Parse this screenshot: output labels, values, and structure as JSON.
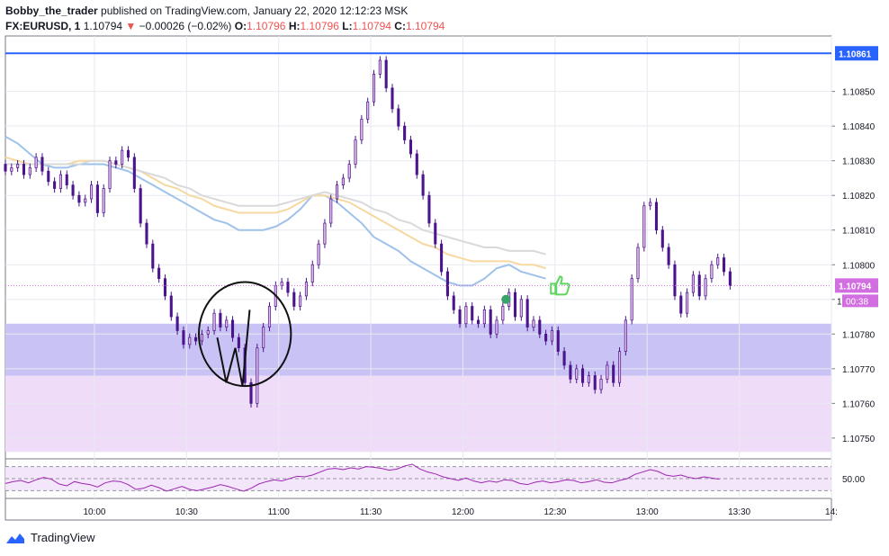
{
  "header": {
    "author": "Bobby_the_trader",
    "published_text": " published on TradingView.com, January 22, 2020 12:12:23 MSK",
    "symbol": "FX:EURUSD, 1",
    "last": "1.10794",
    "change_arrow": "▼",
    "change": "−0.00026 (−0.02%)",
    "o_label": "O:",
    "o_value": "1.10796",
    "h_label": "H:",
    "h_value": "1.10796",
    "l_label": "L:",
    "l_value": "1.10794",
    "c_label": "C:",
    "c_value": "1.10794"
  },
  "footer": {
    "brand": "TradingView"
  },
  "colors": {
    "accent_blue": "#2962ff",
    "up_candle": "#e1bee7",
    "down_candle": "#4a148c",
    "ma_blue": "#9fc2ea",
    "ma_yellow": "#f6d8a0",
    "ma_gray": "#d9d9d9",
    "zone_blue": "#c9c3f5",
    "zone_pink": "#efdcf8",
    "rsi_line": "#9c27b0",
    "price_label": "#d16ee0"
  },
  "chart_data": {
    "type": "candlestick",
    "ylim": [
      1.10744,
      1.10866
    ],
    "y_ticks": [
      "1.10850",
      "1.10840",
      "1.10830",
      "1.10820",
      "1.10810",
      "1.10800",
      "1.10790",
      "1.10780",
      "1.10770",
      "1.10760",
      "1.10750"
    ],
    "x_ticks": [
      "10:00",
      "10:30",
      "11:00",
      "11:30",
      "12:00",
      "12:30",
      "13:00",
      "13:30",
      "14:"
    ],
    "x_tick_minutes": [
      0,
      30,
      60,
      90,
      120,
      150,
      180,
      210,
      240
    ],
    "x_range_minutes": [
      -29,
      240
    ],
    "horizontal_line": {
      "price": 1.10861,
      "label": "1.10861"
    },
    "current_price": {
      "price": 1.10794,
      "label": "1.10794",
      "countdown": "00:38"
    },
    "partial_tick_label": "1",
    "zones": [
      {
        "from": 1.10768,
        "to": 1.10783,
        "color": "#c9c3f5"
      },
      {
        "from": 1.10746,
        "to": 1.10768,
        "color": "#efdcf8"
      }
    ],
    "candle_start_minute": -29,
    "closes": [
      1.10827,
      1.10828,
      1.10829,
      1.10826,
      1.10828,
      1.10831,
      1.10827,
      1.10824,
      1.10822,
      1.10826,
      1.10823,
      1.1082,
      1.10818,
      1.10819,
      1.10823,
      1.10815,
      1.10822,
      1.1083,
      1.10829,
      1.10833,
      1.10831,
      1.10822,
      1.10812,
      1.10806,
      1.10799,
      1.10796,
      1.10791,
      1.10785,
      1.10781,
      1.10777,
      1.10779,
      1.10778,
      1.1078,
      1.10781,
      1.10786,
      1.10782,
      1.10784,
      1.10779,
      1.10776,
      1.10766,
      1.1076,
      1.10776,
      1.10782,
      1.10788,
      1.10794,
      1.10795,
      1.10792,
      1.10788,
      1.10791,
      1.10795,
      1.108,
      1.10806,
      1.10812,
      1.10819,
      1.10823,
      1.10825,
      1.10829,
      1.10836,
      1.10842,
      1.10847,
      1.10855,
      1.10859,
      1.10851,
      1.10845,
      1.1084,
      1.10836,
      1.10832,
      1.10826,
      1.1082,
      1.10812,
      1.10806,
      1.10798,
      1.10791,
      1.10787,
      1.10783,
      1.10788,
      1.10784,
      1.10783,
      1.10787,
      1.1078,
      1.10784,
      1.10788,
      1.10792,
      1.10785,
      1.1079,
      1.10782,
      1.10784,
      1.1078,
      1.10778,
      1.10781,
      1.10775,
      1.10771,
      1.10767,
      1.1077,
      1.10766,
      1.10768,
      1.10764,
      1.10767,
      1.10771,
      1.10766,
      1.10775,
      1.10784,
      1.10796,
      1.10805,
      1.10817,
      1.10818,
      1.1081,
      1.10805,
      1.108,
      1.10791,
      1.10786,
      1.10792,
      1.10797,
      1.10791,
      1.10796,
      1.108,
      1.10802,
      1.10798,
      1.10794
    ],
    "overlays": [
      {
        "name": "",
        "color": "#9fc2ea",
        "from": -29,
        "points": [
          1.10837,
          1.10835,
          1.10832,
          1.10829,
          1.10828,
          1.10828,
          1.10829,
          1.10829,
          1.10829,
          1.10828,
          1.10827,
          1.10825,
          1.10823,
          1.10821,
          1.10819,
          1.10817,
          1.10815,
          1.10813,
          1.10812,
          1.1081,
          1.1081,
          1.1081,
          1.10811,
          1.10813,
          1.10816,
          1.1082,
          1.1082,
          1.10818,
          1.10815,
          1.10812,
          1.10808,
          1.10806,
          1.10804,
          1.10801,
          1.10799,
          1.10797,
          1.10795,
          1.10794,
          1.10794,
          1.10796,
          1.10799,
          1.108,
          1.10798,
          1.10797,
          1.10796
        ]
      },
      {
        "name": "",
        "color": "#f6d8a0",
        "from": -29,
        "points": [
          1.10831,
          1.1083,
          1.10829,
          1.10829,
          1.10829,
          1.10829,
          1.1083,
          1.1083,
          1.1083,
          1.10829,
          1.10828,
          1.10827,
          1.10825,
          1.10823,
          1.10822,
          1.1082,
          1.10819,
          1.10817,
          1.10816,
          1.10815,
          1.10815,
          1.10815,
          1.10815,
          1.10816,
          1.10818,
          1.1082,
          1.1082,
          1.10819,
          1.10818,
          1.10816,
          1.10814,
          1.10812,
          1.1081,
          1.10808,
          1.10806,
          1.10805,
          1.10803,
          1.10802,
          1.10801,
          1.10801,
          1.10801,
          1.10801,
          1.108,
          1.108,
          1.10799
        ]
      },
      {
        "name": "",
        "color": "#d9d9d9",
        "from": -29,
        "points": [
          1.10829,
          1.10829,
          1.10829,
          1.10829,
          1.10829,
          1.10829,
          1.10829,
          1.1083,
          1.1083,
          1.10829,
          1.10828,
          1.10827,
          1.10826,
          1.10825,
          1.10823,
          1.10822,
          1.1082,
          1.10819,
          1.10818,
          1.10817,
          1.10817,
          1.10817,
          1.10817,
          1.10818,
          1.10819,
          1.1082,
          1.10821,
          1.1082,
          1.10819,
          1.10818,
          1.10816,
          1.10815,
          1.10813,
          1.10812,
          1.1081,
          1.10809,
          1.10808,
          1.10807,
          1.10806,
          1.10805,
          1.10805,
          1.10804,
          1.10804,
          1.10804,
          1.10803
        ]
      }
    ],
    "rsi": {
      "ylim": [
        35,
        65
      ],
      "levels": [
        60,
        50,
        40
      ],
      "level_label": "50.00",
      "values": [
        46.0,
        47.5,
        48.5,
        46.5,
        49.0,
        51.0,
        49.5,
        45.5,
        44.0,
        47.5,
        46.0,
        45.0,
        43.0,
        46.5,
        48.0,
        47.5,
        45.0,
        41.0,
        42.0,
        44.5,
        42.5,
        39.5,
        41.5,
        43.5,
        41.0,
        40.0,
        41.5,
        43.0,
        45.0,
        43.5,
        41.5,
        39.5,
        42.0,
        45.5,
        47.5,
        49.0,
        48.0,
        50.0,
        52.0,
        51.5,
        53.0,
        55.5,
        58.0,
        58.5,
        57.5,
        59.0,
        58.0,
        60.0,
        59.5,
        58.5,
        57.0,
        58.0,
        60.5,
        62.0,
        58.0,
        55.5,
        54.0,
        51.5,
        50.0,
        48.5,
        50.5,
        48.0,
        46.5,
        48.0,
        47.0,
        49.0,
        48.5,
        46.0,
        45.0,
        47.0,
        48.0,
        46.5,
        47.5,
        49.0,
        48.5,
        46.5,
        47.5,
        49.0,
        47.0,
        46.5,
        48.5,
        50.0,
        53.5,
        55.5,
        57.5,
        56.0,
        53.0,
        52.0,
        53.0,
        51.0,
        50.0,
        51.5,
        50.5,
        49.5
      ]
    }
  }
}
